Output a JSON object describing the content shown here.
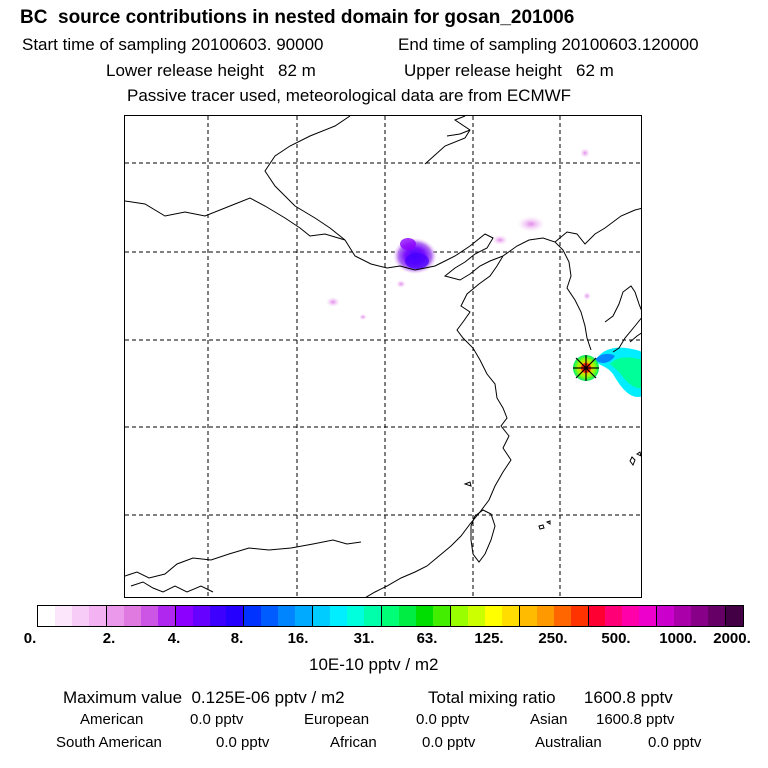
{
  "header": {
    "title": "BC  source contributions in nested domain for gosan_201006",
    "start_time": "Start time of sampling 20100603. 90000",
    "end_time": "End time of sampling 20100603.120000",
    "lower_release": "Lower release height   82 m",
    "upper_release": "Upper release height   62 m",
    "tracer_note": "Passive tracer used, meteorological data are from ECMWF"
  },
  "colorbar": {
    "colors": [
      "#ffffff",
      "#fbe6fb",
      "#f7ccf7",
      "#f3b3f3",
      "#eb99eb",
      "#e07ae0",
      "#cc55e6",
      "#b028f0",
      "#8c00ff",
      "#6600ff",
      "#3d00ff",
      "#2600ff",
      "#0033ff",
      "#005cff",
      "#0085ff",
      "#00aaff",
      "#00ccff",
      "#00eeff",
      "#00ffdd",
      "#00ffaa",
      "#00ff77",
      "#00ee44",
      "#00dd00",
      "#44ee00",
      "#99ff00",
      "#ccff00",
      "#ffff00",
      "#ffdd00",
      "#ffbb00",
      "#ff9900",
      "#ff6600",
      "#ff3300",
      "#ff0033",
      "#ff0077",
      "#ff00aa",
      "#ee00cc",
      "#cc00cc",
      "#aa00aa",
      "#880088",
      "#660066",
      "#440044"
    ],
    "tick_labels": [
      "0.",
      "2.",
      "4.",
      "8.",
      "16.",
      "31.",
      "63.",
      "125.",
      "250.",
      "500.",
      "1000.",
      "2000."
    ],
    "unit": "10E-10 pptv / m2"
  },
  "summary": {
    "max_value": "Maximum value  0.125E-06 pptv / m2",
    "total_mixing": "Total mixing ratio      1600.8 pptv",
    "regions": [
      {
        "name": "American",
        "value": "0.0 pptv"
      },
      {
        "name": "European",
        "value": "0.0 pptv"
      },
      {
        "name": "Asian",
        "value": "1600.8 pptv"
      },
      {
        "name": "South American",
        "value": "0.0 pptv"
      },
      {
        "name": "African",
        "value": "0.0 pptv"
      },
      {
        "name": "Australian",
        "value": "0.0 pptv"
      }
    ]
  }
}
